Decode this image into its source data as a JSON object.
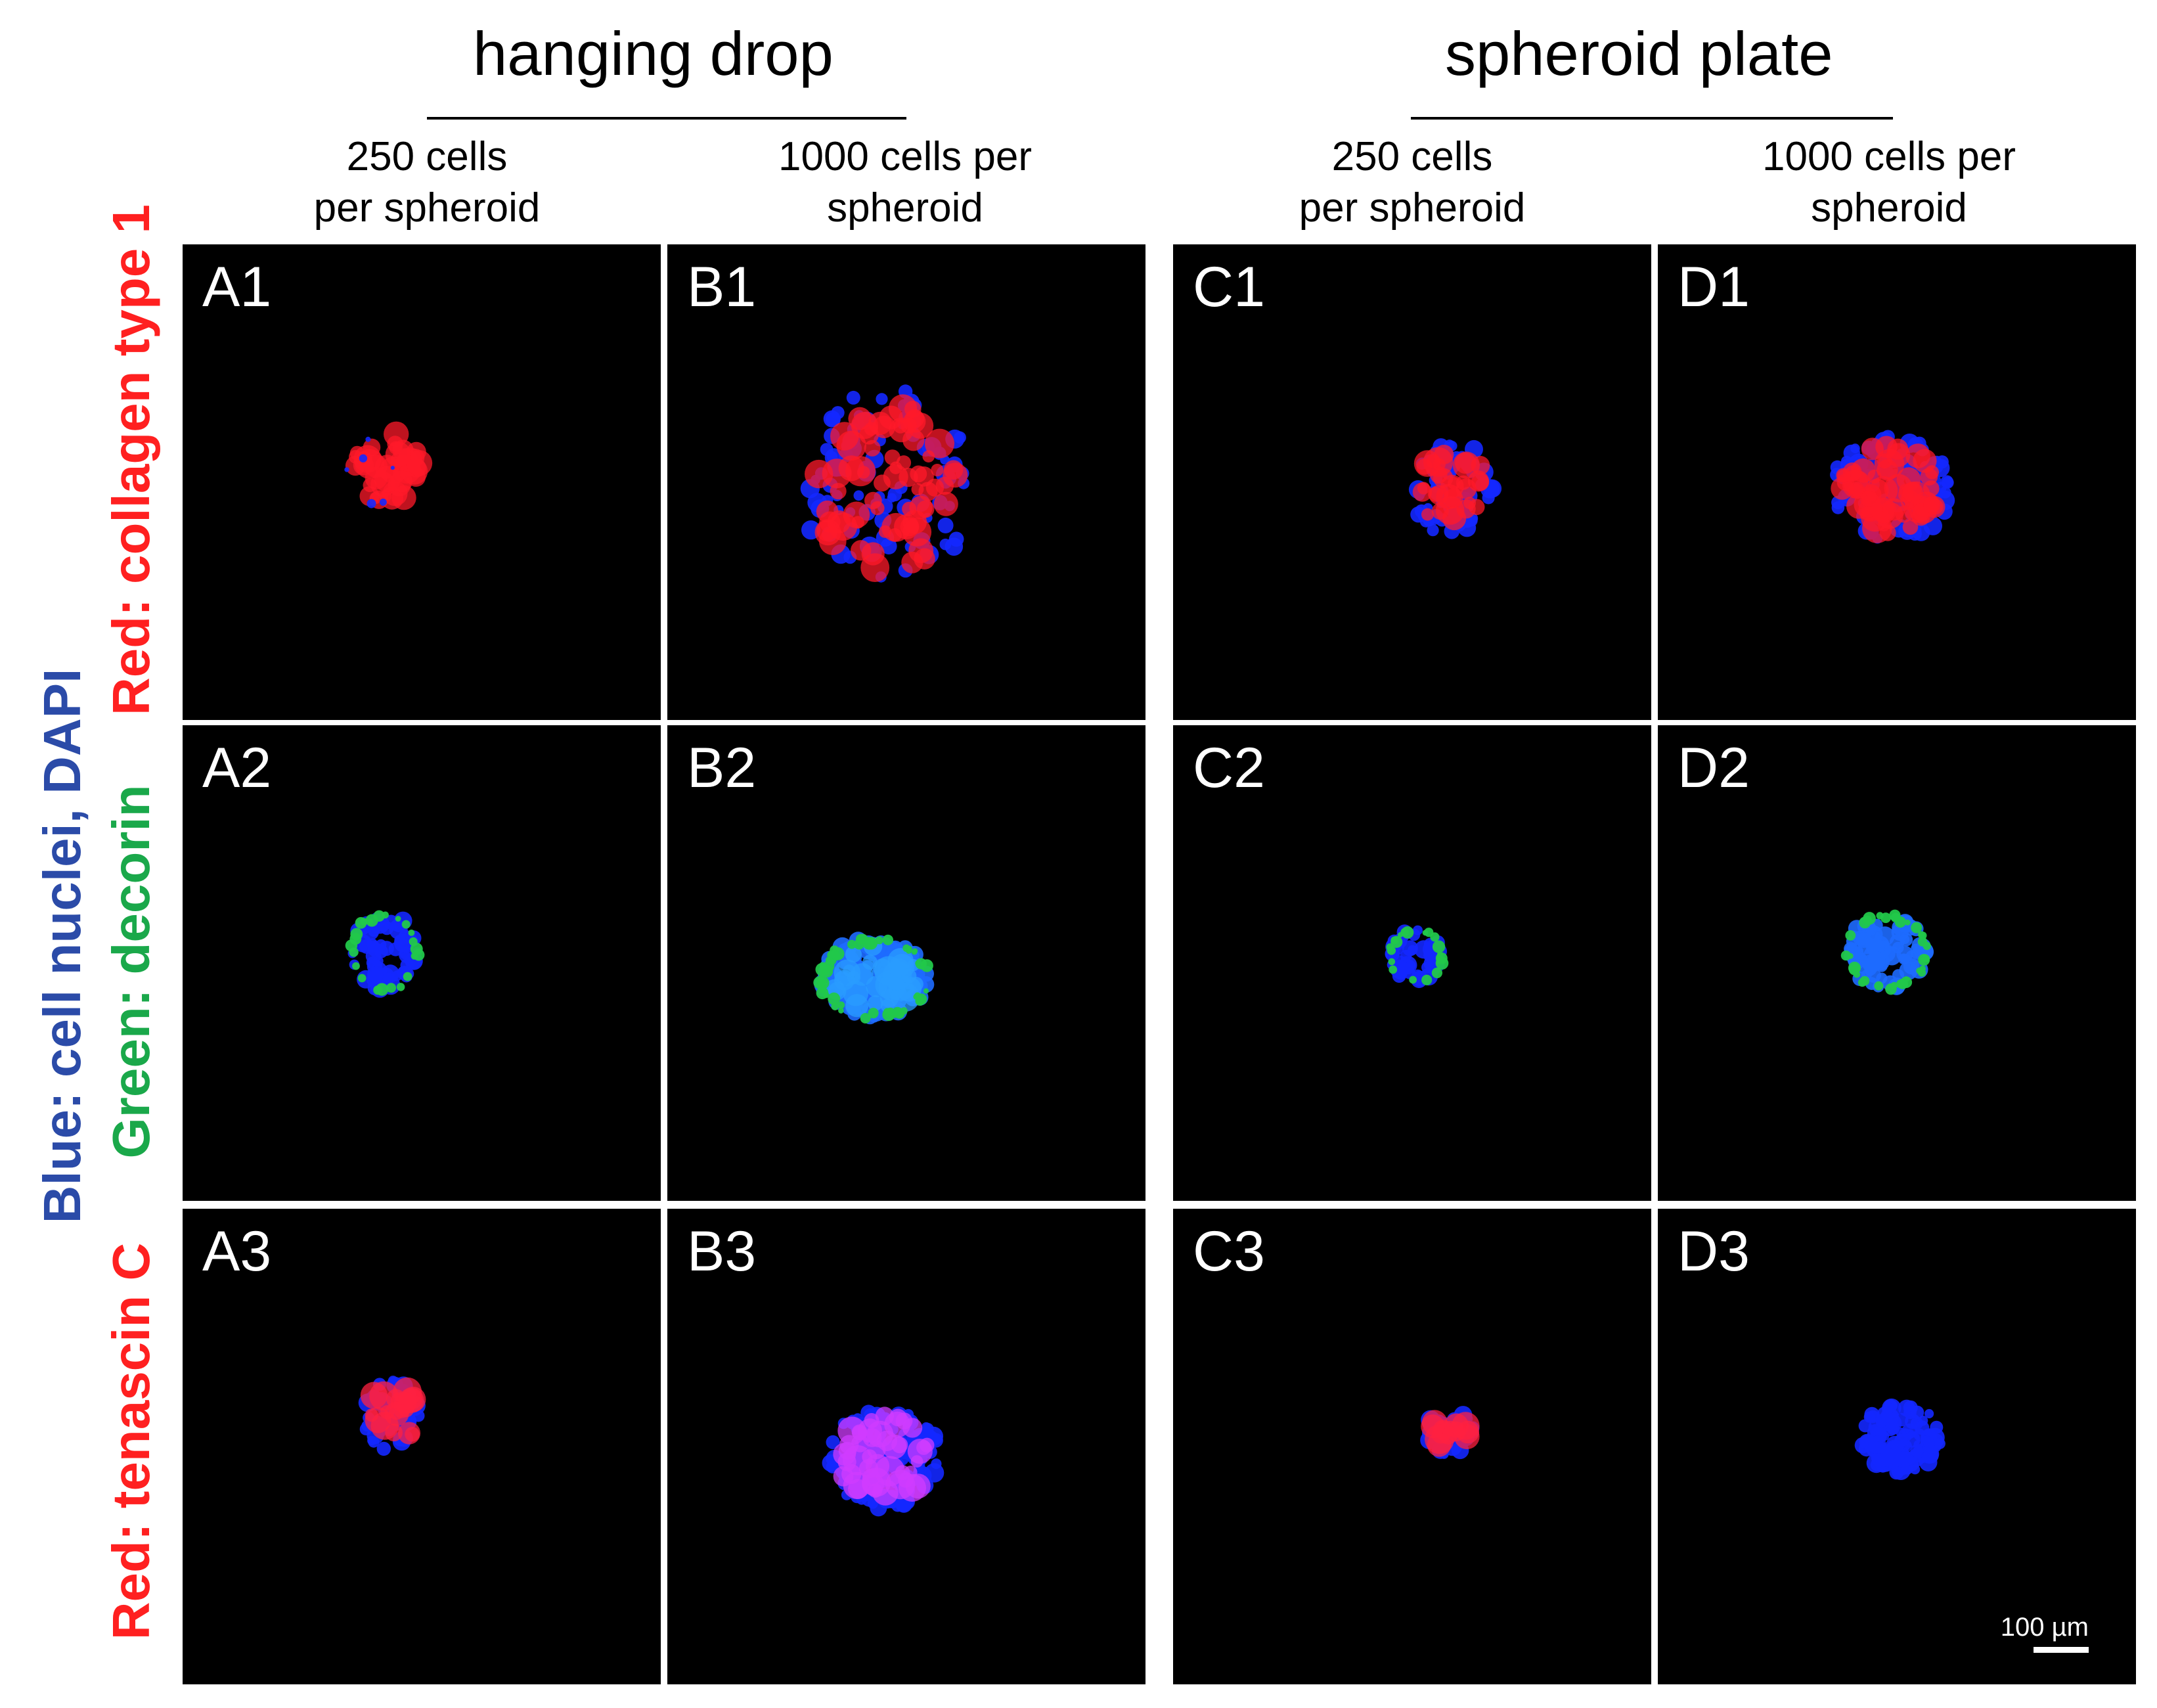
{
  "groups": [
    {
      "title": "hanging drop",
      "columns": [
        [
          "250 cells",
          "per spheroid"
        ],
        [
          "1000 cells per",
          "spheroid"
        ]
      ]
    },
    {
      "title": "spheroid plate",
      "columns": [
        [
          "250 cells",
          "per spheroid"
        ],
        [
          "1000 cells per",
          "spheroid"
        ]
      ]
    }
  ],
  "side_labels": [
    {
      "text": "Red: collagen type 1",
      "color": "#ff2020"
    },
    {
      "text": "Green: decorin",
      "color": "#1aa84a"
    },
    {
      "text": "Blue: cell nuclei, DAPI",
      "color": "#2b4ba8"
    },
    {
      "text": "Red: tenascin C",
      "color": "#ff2020"
    }
  ],
  "panels": [
    "A1",
    "B1",
    "C1",
    "D1",
    "A2",
    "B2",
    "C2",
    "D2",
    "A3",
    "B3",
    "C3",
    "D3"
  ],
  "scale_bar": {
    "label": "100 µm"
  },
  "colors": {
    "dapi": "#1428ff",
    "collagen": "#ff1a2a",
    "decorin": "#22c84a",
    "tenascin": "#ff2040"
  }
}
